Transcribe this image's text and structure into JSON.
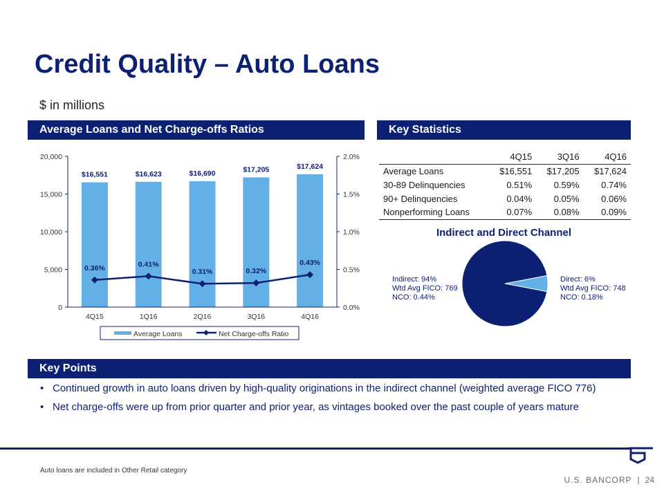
{
  "title": "Credit Quality – Auto Loans",
  "subtitle": "$ in millions",
  "left_header": "Average Loans and Net Charge-offs Ratios",
  "right_header": "Key Statistics",
  "key_points_header": "Key Points",
  "chart_data": [
    {
      "type": "bar+line",
      "categories": [
        "4Q15",
        "1Q16",
        "2Q16",
        "3Q16",
        "4Q16"
      ],
      "series": [
        {
          "name": "Average Loans",
          "type": "bar",
          "axis": "left",
          "values": [
            16551,
            16623,
            16690,
            17205,
            17624
          ],
          "labels": [
            "$16,551",
            "$16,623",
            "$16,690",
            "$17,205",
            "$17,624"
          ],
          "color": "#63b0e6"
        },
        {
          "name": "Net Charge-offs Ratio",
          "type": "line",
          "axis": "right",
          "values": [
            0.36,
            0.41,
            0.31,
            0.32,
            0.43
          ],
          "labels": [
            "0.36%",
            "0.41%",
            "0.31%",
            "0.32%",
            "0.43%"
          ],
          "color": "#0c2074"
        }
      ],
      "yleft": {
        "range": [
          0,
          20000
        ],
        "ticks": [
          "0",
          "5,000",
          "10,000",
          "15,000",
          "20,000"
        ]
      },
      "yright": {
        "range": [
          0,
          2.0
        ],
        "ticks": [
          "0.0%",
          "0.5%",
          "1.0%",
          "1.5%",
          "2.0%"
        ]
      },
      "legend": "bottom",
      "grid": false
    },
    {
      "type": "pie",
      "title": "Indirect and Direct Channel",
      "slices": [
        {
          "name": "Indirect",
          "value": 94,
          "color": "#0c2074",
          "lines": [
            "Indirect: 94%",
            "Wtd Avg FICO: 769",
            "NCO: 0.44%"
          ]
        },
        {
          "name": "Direct",
          "value": 6,
          "color": "#63b0e6",
          "lines": [
            "Direct: 6%",
            "Wtd Avg FICO: 748",
            "NCO: 0.18%"
          ]
        }
      ]
    }
  ],
  "stats": {
    "columns": [
      "",
      "4Q15",
      "3Q16",
      "4Q16"
    ],
    "rows": [
      [
        "Average Loans",
        "$16,551",
        "$17,205",
        "$17,624"
      ],
      [
        "30-89 Delinquencies",
        "0.51%",
        "0.59%",
        "0.74%"
      ],
      [
        "90+ Delinquencies",
        "0.04%",
        "0.05%",
        "0.06%"
      ],
      [
        "Nonperforming Loans",
        "0.07%",
        "0.08%",
        "0.09%"
      ]
    ]
  },
  "key_points": [
    "Continued growth in auto loans driven by high-quality originations in the indirect channel (weighted average FICO 776)",
    "Net charge-offs were up from prior quarter and prior year, as vintages booked over the past couple of years mature"
  ],
  "footnote": "Auto loans are included in Other Retail category",
  "brand": "U.S. BANCORP",
  "page_number": "24"
}
